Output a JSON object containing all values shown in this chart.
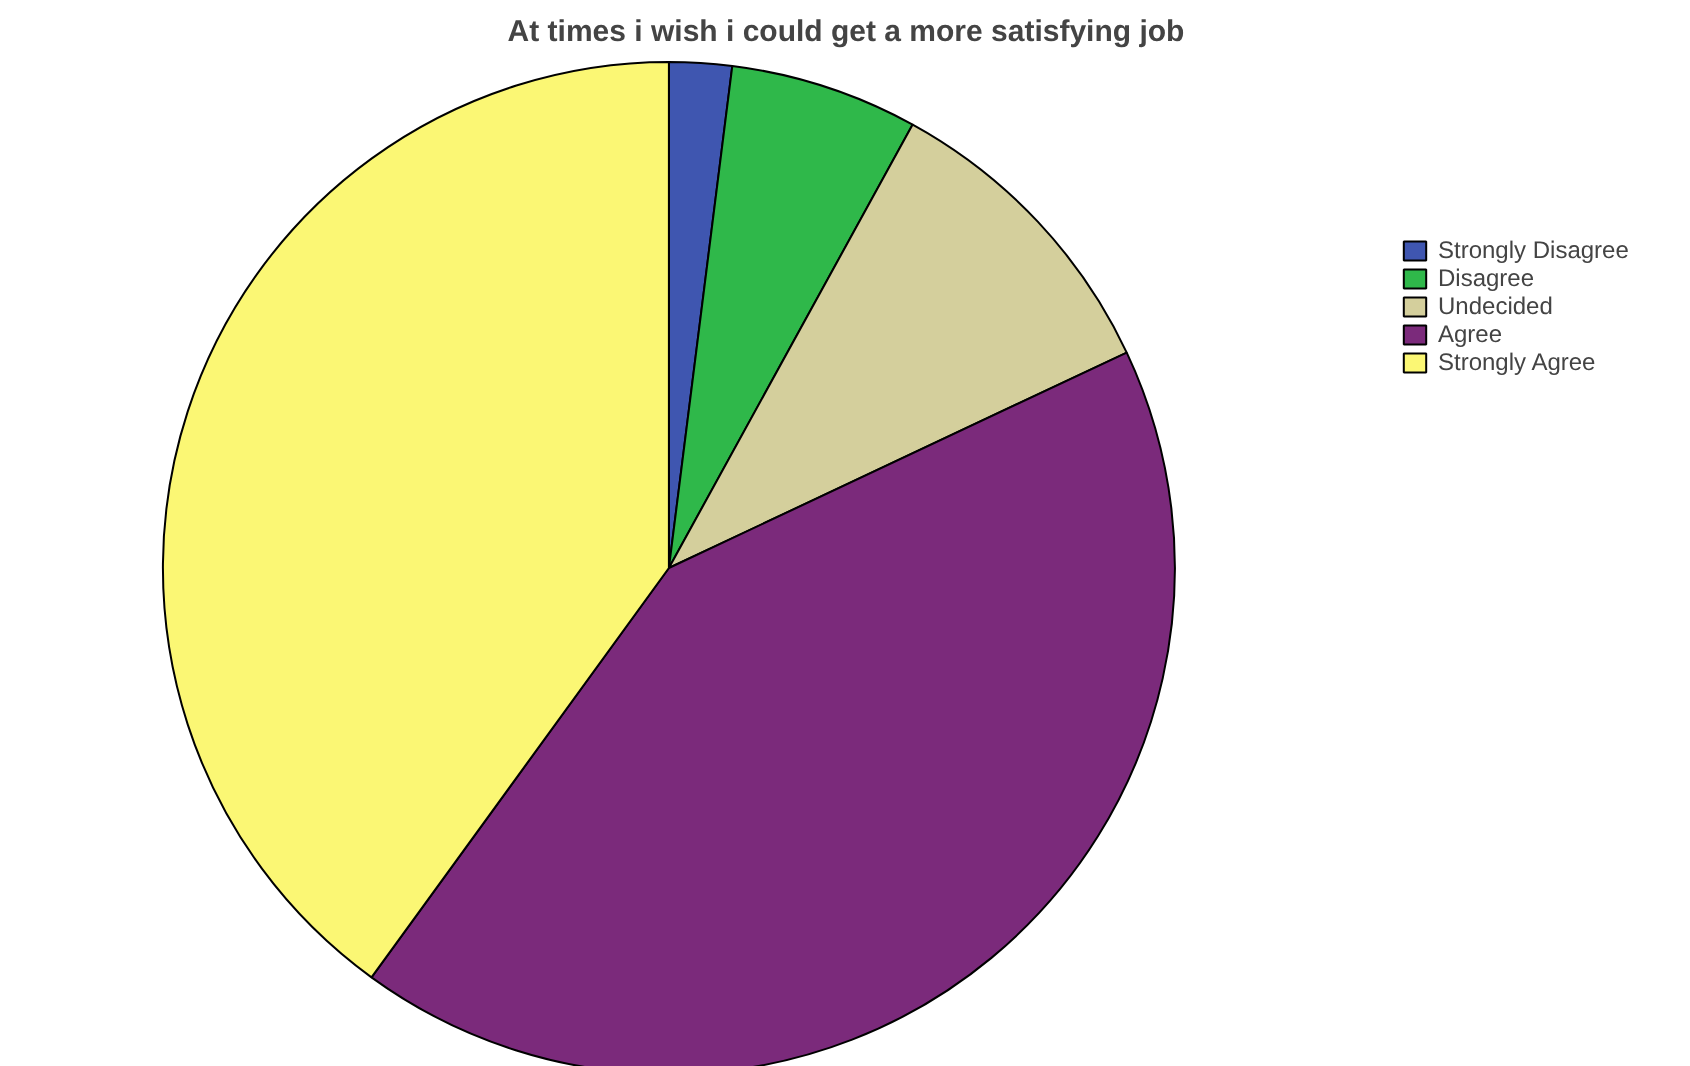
{
  "chart_data": {
    "type": "pie",
    "title": "At times i wish i could get a more satisfying job",
    "categories": [
      "Strongly Disagree",
      "Disagree",
      "Undecided",
      "Agree",
      "Strongly Agree"
    ],
    "values": [
      2,
      6,
      10,
      42,
      40
    ],
    "colors": [
      "#3f56b0",
      "#2fb84a",
      "#d4cf9c",
      "#7b2a7b",
      "#fbf774"
    ],
    "legend": "top right"
  }
}
